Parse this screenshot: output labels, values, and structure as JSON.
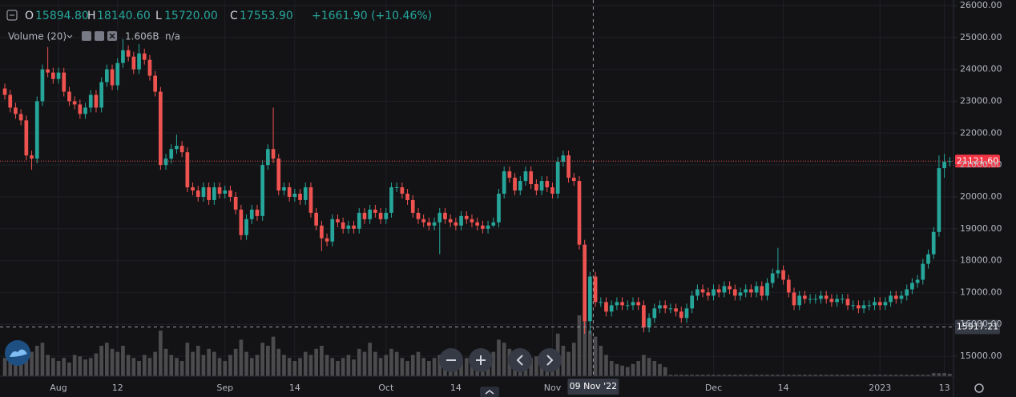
{
  "chart_data": {
    "type": "candlestick",
    "legend": {
      "open_label": "O",
      "open": "15894.80",
      "high_label": "H",
      "high": "18140.60",
      "low_label": "L",
      "low": "15720.00",
      "close_label": "C",
      "close": "17553.90",
      "change": "+1661.90 (+10.46%)"
    },
    "volume_label": "Volume (20)",
    "volume_value": "1.606B",
    "volume_na": "n/a",
    "up_color": "#26a69a",
    "down_color": "#ef5350",
    "volume_color": "#4b4b4e",
    "grid": true,
    "xlim": [
      -0.9,
      176.7
    ],
    "xticks": [
      {
        "value": 10,
        "label": "Aug"
      },
      {
        "value": 21,
        "label": "12"
      },
      {
        "value": 41,
        "label": "Sep"
      },
      {
        "value": 54,
        "label": "14"
      },
      {
        "value": 71,
        "label": "Oct"
      },
      {
        "value": 84,
        "label": "14"
      },
      {
        "value": 102,
        "label": "Nov"
      },
      {
        "value": 132,
        "label": "Dec"
      },
      {
        "value": 145,
        "label": "14"
      },
      {
        "value": 163,
        "label": "2023"
      },
      {
        "value": 175,
        "label": "13"
      }
    ],
    "ylim": [
      14374,
      26176
    ],
    "yticks": [
      {
        "value": 15000,
        "label": "15000.00"
      },
      {
        "value": 16000,
        "label": "16000.00"
      },
      {
        "value": 17000,
        "label": "17000.00"
      },
      {
        "value": 18000,
        "label": "18000.00"
      },
      {
        "value": 19000,
        "label": "19000.00"
      },
      {
        "value": 20000,
        "label": "20000.00"
      },
      {
        "value": 21000,
        "label": "21000.00"
      },
      {
        "value": 22000,
        "label": "22000.00"
      },
      {
        "value": 23000,
        "label": "23000.00"
      },
      {
        "value": 24000,
        "label": "24000.00"
      },
      {
        "value": 25000,
        "label": "25000.00"
      },
      {
        "value": 26000,
        "label": "26000.00"
      }
    ],
    "last_price": {
      "value": 21121.6,
      "label": "21121.60"
    },
    "crosshair": {
      "x": 109.6,
      "x_label": "09 Nov '22",
      "price": {
        "value": 15917.21,
        "label": "15917.21"
      }
    },
    "volume_ylim": [
      0,
      50
    ],
    "candles": [
      [
        23400,
        23550,
        23050,
        23200
      ],
      [
        23200,
        23350,
        22650,
        22800
      ],
      [
        22800,
        22950,
        22450,
        22600
      ],
      [
        22600,
        22750,
        22250,
        22400
      ],
      [
        22400,
        22550,
        21150,
        21300
      ],
      [
        21300,
        21450,
        20850,
        21200
      ],
      [
        21200,
        23150,
        21050,
        23000
      ],
      [
        23000,
        24150,
        22850,
        24000
      ],
      [
        24000,
        24700,
        23750,
        23900
      ],
      [
        23900,
        24050,
        23550,
        23700
      ],
      [
        23700,
        24050,
        23550,
        23900
      ],
      [
        23900,
        24050,
        23150,
        23300
      ],
      [
        23300,
        23450,
        22850,
        23000
      ],
      [
        23000,
        23150,
        22750,
        22900
      ],
      [
        22900,
        23050,
        22450,
        22600
      ],
      [
        22600,
        22950,
        22450,
        22800
      ],
      [
        22800,
        23350,
        22650,
        23200
      ],
      [
        23200,
        23350,
        22650,
        22800
      ],
      [
        22800,
        23750,
        22650,
        23600
      ],
      [
        23600,
        24150,
        23450,
        24000
      ],
      [
        24000,
        24150,
        23350,
        23500
      ],
      [
        23500,
        24350,
        23350,
        24200
      ],
      [
        24200,
        24950,
        24050,
        24600
      ],
      [
        24600,
        24750,
        24250,
        24400
      ],
      [
        24400,
        24550,
        23850,
        24000
      ],
      [
        24000,
        24800,
        23850,
        24500
      ],
      [
        24500,
        24650,
        24150,
        24300
      ],
      [
        24300,
        24450,
        23650,
        23800
      ],
      [
        23800,
        23950,
        23150,
        23300
      ],
      [
        23300,
        23450,
        20850,
        21000
      ],
      [
        21000,
        21350,
        20850,
        21200
      ],
      [
        21200,
        21650,
        21050,
        21500
      ],
      [
        21500,
        21950,
        21350,
        21600
      ],
      [
        21600,
        21750,
        21250,
        21400
      ],
      [
        21400,
        21550,
        20150,
        20300
      ],
      [
        20300,
        20450,
        20050,
        20200
      ],
      [
        20200,
        20350,
        19850,
        20000
      ],
      [
        20000,
        20450,
        19850,
        20300
      ],
      [
        20300,
        20450,
        19750,
        19900
      ],
      [
        19900,
        20450,
        19750,
        20300
      ],
      [
        20300,
        20450,
        19950,
        20100
      ],
      [
        20100,
        20350,
        19950,
        20200
      ],
      [
        20200,
        20350,
        19850,
        20000
      ],
      [
        20000,
        20150,
        19450,
        19600
      ],
      [
        19600,
        19750,
        18650,
        18800
      ],
      [
        18800,
        19450,
        18650,
        19300
      ],
      [
        19300,
        19750,
        19150,
        19600
      ],
      [
        19600,
        19750,
        19250,
        19400
      ],
      [
        19400,
        21150,
        19250,
        21000
      ],
      [
        21000,
        21650,
        20850,
        21500
      ],
      [
        21500,
        22800,
        21050,
        21200
      ],
      [
        21200,
        21350,
        20050,
        20200
      ],
      [
        20200,
        20450,
        20050,
        20300
      ],
      [
        20300,
        20450,
        19850,
        20000
      ],
      [
        20000,
        20250,
        19850,
        20100
      ],
      [
        20100,
        20250,
        19750,
        19900
      ],
      [
        19900,
        20450,
        19750,
        20300
      ],
      [
        20300,
        20450,
        19350,
        19500
      ],
      [
        19500,
        19650,
        18950,
        19100
      ],
      [
        19100,
        19250,
        18300,
        18700
      ],
      [
        18700,
        18850,
        18450,
        18600
      ],
      [
        18600,
        19450,
        18450,
        19300
      ],
      [
        19300,
        19450,
        19050,
        19200
      ],
      [
        19200,
        19350,
        18850,
        19000
      ],
      [
        19000,
        19250,
        18850,
        19100
      ],
      [
        19100,
        19250,
        18850,
        19000
      ],
      [
        19000,
        19650,
        18850,
        19500
      ],
      [
        19500,
        19650,
        19150,
        19300
      ],
      [
        19300,
        19750,
        19150,
        19600
      ],
      [
        19600,
        19750,
        19350,
        19500
      ],
      [
        19500,
        19650,
        19150,
        19300
      ],
      [
        19300,
        19650,
        19150,
        19500
      ],
      [
        19500,
        20450,
        19350,
        20300
      ],
      [
        20300,
        20450,
        20150,
        20300
      ],
      [
        20300,
        20450,
        19950,
        20100
      ],
      [
        20100,
        20250,
        19750,
        19900
      ],
      [
        19900,
        20050,
        19350,
        19500
      ],
      [
        19500,
        19650,
        19150,
        19300
      ],
      [
        19300,
        19450,
        19050,
        19200
      ],
      [
        19200,
        19350,
        18950,
        19100
      ],
      [
        19100,
        19350,
        18950,
        19200
      ],
      [
        19200,
        19650,
        18200,
        19500
      ],
      [
        19500,
        19650,
        19150,
        19300
      ],
      [
        19300,
        19450,
        19050,
        19200
      ],
      [
        19200,
        19350,
        18950,
        19100
      ],
      [
        19100,
        19550,
        18950,
        19400
      ],
      [
        19400,
        19550,
        19150,
        19300
      ],
      [
        19300,
        19450,
        19050,
        19200
      ],
      [
        19200,
        19350,
        18950,
        19100
      ],
      [
        19100,
        19250,
        18850,
        19000
      ],
      [
        19000,
        19250,
        18850,
        19100
      ],
      [
        19100,
        19350,
        19050,
        19200
      ],
      [
        19200,
        20250,
        19050,
        20100
      ],
      [
        20100,
        20950,
        19950,
        20800
      ],
      [
        20800,
        20950,
        20450,
        20600
      ],
      [
        20600,
        20750,
        20050,
        20200
      ],
      [
        20200,
        20650,
        20050,
        20500
      ],
      [
        20500,
        20950,
        20350,
        20800
      ],
      [
        20800,
        20950,
        20250,
        20400
      ],
      [
        20400,
        20550,
        20050,
        20200
      ],
      [
        20200,
        20650,
        20050,
        20500
      ],
      [
        20500,
        20650,
        20150,
        20300
      ],
      [
        20300,
        20450,
        19950,
        20100
      ],
      [
        20100,
        21250,
        19950,
        21100
      ],
      [
        21100,
        21450,
        20950,
        21300
      ],
      [
        21300,
        21450,
        20450,
        20600
      ],
      [
        20600,
        20750,
        20350,
        20500
      ],
      [
        20500,
        20650,
        18350,
        18500
      ],
      [
        18500,
        18650,
        15700,
        16100
      ],
      [
        16100,
        17650,
        15700,
        17500
      ],
      [
        17500,
        17650,
        16550,
        16700
      ],
      [
        16700,
        16850,
        16550,
        16700
      ],
      [
        16700,
        16850,
        16250,
        16400
      ],
      [
        16400,
        16750,
        16250,
        16600
      ],
      [
        16600,
        16850,
        16450,
        16700
      ],
      [
        16700,
        16850,
        16450,
        16600
      ],
      [
        16600,
        16750,
        16450,
        16600
      ],
      [
        16600,
        16850,
        16450,
        16700
      ],
      [
        16700,
        16850,
        16450,
        16600
      ],
      [
        16600,
        16750,
        15750,
        15900
      ],
      [
        15900,
        16350,
        15750,
        16200
      ],
      [
        16200,
        16650,
        16050,
        16500
      ],
      [
        16500,
        16750,
        16350,
        16600
      ],
      [
        16600,
        16750,
        16350,
        16500
      ],
      [
        16500,
        16650,
        16350,
        16500
      ],
      [
        16500,
        16650,
        16250,
        16400
      ],
      [
        16400,
        16550,
        16050,
        16200
      ],
      [
        16200,
        16650,
        16050,
        16500
      ],
      [
        16500,
        17050,
        16350,
        16900
      ],
      [
        16900,
        17250,
        16750,
        17100
      ],
      [
        17100,
        17250,
        16850,
        17000
      ],
      [
        17000,
        17150,
        16750,
        16900
      ],
      [
        16900,
        17250,
        16750,
        17100
      ],
      [
        17100,
        17250,
        16850,
        17000
      ],
      [
        17000,
        17350,
        16850,
        17200
      ],
      [
        17200,
        17350,
        16950,
        17100
      ],
      [
        17100,
        17250,
        16750,
        16900
      ],
      [
        16900,
        17150,
        16750,
        17000
      ],
      [
        17000,
        17250,
        16850,
        17100
      ],
      [
        17100,
        17250,
        16850,
        17000
      ],
      [
        17000,
        17350,
        16850,
        17200
      ],
      [
        17200,
        17350,
        16750,
        16900
      ],
      [
        16900,
        17450,
        16750,
        17300
      ],
      [
        17300,
        17750,
        17150,
        17600
      ],
      [
        17600,
        18400,
        17450,
        17700
      ],
      [
        17700,
        17850,
        17250,
        17400
      ],
      [
        17400,
        17550,
        16850,
        17000
      ],
      [
        17000,
        17150,
        16450,
        16600
      ],
      [
        16600,
        17050,
        16450,
        16900
      ],
      [
        16900,
        17050,
        16650,
        16800
      ],
      [
        16800,
        16950,
        16650,
        16800
      ],
      [
        16800,
        16950,
        16650,
        16800
      ],
      [
        16800,
        17050,
        16650,
        16900
      ],
      [
        16900,
        17050,
        16650,
        16800
      ],
      [
        16800,
        16950,
        16550,
        16700
      ],
      [
        16700,
        16950,
        16550,
        16800
      ],
      [
        16800,
        16950,
        16650,
        16800
      ],
      [
        16800,
        16950,
        16450,
        16600
      ],
      [
        16600,
        16750,
        16450,
        16600
      ],
      [
        16600,
        16750,
        16350,
        16500
      ],
      [
        16500,
        16750,
        16350,
        16600
      ],
      [
        16600,
        16750,
        16450,
        16600
      ],
      [
        16600,
        16850,
        16450,
        16700
      ],
      [
        16700,
        16850,
        16450,
        16600
      ],
      [
        16600,
        16850,
        16450,
        16700
      ],
      [
        16700,
        17050,
        16550,
        16900
      ],
      [
        16900,
        17050,
        16650,
        16800
      ],
      [
        16800,
        17050,
        16650,
        16900
      ],
      [
        16900,
        17250,
        16750,
        17100
      ],
      [
        17100,
        17450,
        16950,
        17300
      ],
      [
        17300,
        17550,
        17150,
        17400
      ],
      [
        17400,
        18050,
        17250,
        17900
      ],
      [
        17900,
        18350,
        17750,
        18200
      ],
      [
        18200,
        19050,
        18050,
        18900
      ],
      [
        18900,
        21300,
        18750,
        20900
      ],
      [
        20900,
        21350,
        20600,
        21100
      ],
      [
        21100,
        21250,
        20950,
        21121.6
      ]
    ],
    "volume": [
      12,
      15,
      10,
      14,
      18,
      16,
      20,
      22,
      14,
      12,
      10,
      12,
      9,
      14,
      13,
      11,
      12,
      15,
      20,
      22,
      18,
      16,
      20,
      14,
      12,
      10,
      14,
      12,
      16,
      30,
      18,
      14,
      12,
      10,
      22,
      16,
      20,
      14,
      18,
      16,
      12,
      10,
      14,
      18,
      24,
      16,
      12,
      14,
      22,
      20,
      26,
      18,
      14,
      12,
      10,
      12,
      16,
      14,
      18,
      20,
      14,
      12,
      10,
      12,
      14,
      11,
      18,
      16,
      22,
      16,
      12,
      14,
      18,
      16,
      12,
      10,
      14,
      16,
      12,
      10,
      12,
      14,
      10,
      9,
      8,
      11,
      12,
      10,
      9,
      12,
      14,
      16,
      24,
      22,
      18,
      14,
      12,
      10,
      12,
      13,
      14,
      12,
      16,
      28,
      20,
      16,
      22,
      40,
      48,
      30,
      26,
      20,
      14,
      10,
      8,
      7,
      6,
      8,
      10,
      14,
      12,
      10,
      8,
      6,
      1,
      1,
      1,
      1,
      1,
      1,
      1,
      1,
      1,
      1,
      1,
      1,
      1,
      1,
      1,
      1,
      1,
      1,
      1,
      1,
      1,
      1,
      1,
      1,
      1,
      1,
      1,
      1,
      1,
      1,
      1,
      1,
      1,
      1,
      1,
      1,
      1,
      1,
      1,
      1,
      1,
      1,
      1,
      1,
      1,
      1,
      1,
      1,
      1,
      2,
      2,
      2,
      1.606
    ]
  }
}
